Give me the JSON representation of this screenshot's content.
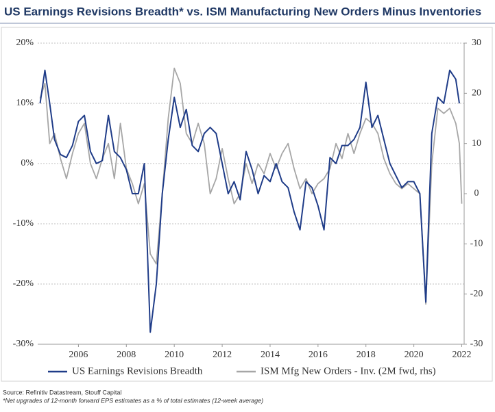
{
  "chart_data": {
    "type": "line",
    "title": "US Earnings Revisions Breadth* vs. ISM Manufacturing New Orders Minus Inventories",
    "source": "Source: Refinitiv Datastream, Stouff Capital",
    "footnote": "*Net upgrades of 12-month forward EPS estimates as a % of total estimates (12-week average)",
    "x": [
      2004.4,
      2004.6,
      2004.8,
      2005,
      2005.25,
      2005.5,
      2005.75,
      2006,
      2006.25,
      2006.5,
      2006.75,
      2007,
      2007.25,
      2007.5,
      2007.75,
      2008,
      2008.25,
      2008.5,
      2008.75,
      2009,
      2009.25,
      2009.5,
      2009.75,
      2010,
      2010.25,
      2010.5,
      2010.75,
      2011,
      2011.25,
      2011.5,
      2011.75,
      2012,
      2012.25,
      2012.5,
      2012.75,
      2013,
      2013.25,
      2013.5,
      2013.75,
      2014,
      2014.25,
      2014.5,
      2014.75,
      2015,
      2015.25,
      2015.5,
      2015.75,
      2016,
      2016.25,
      2016.5,
      2016.75,
      2017,
      2017.25,
      2017.5,
      2017.75,
      2018,
      2018.25,
      2018.5,
      2018.75,
      2019,
      2019.25,
      2019.5,
      2019.75,
      2020,
      2020.25,
      2020.5,
      2020.75,
      2021,
      2021.25,
      2021.5,
      2021.75,
      2021.9,
      2022
    ],
    "series": [
      {
        "name": "US Earnings Revisions Breadth",
        "color": "#1f3c88",
        "axis": "y",
        "values": [
          10,
          15.5,
          10,
          4,
          1.5,
          1,
          3,
          7,
          8,
          2,
          0,
          0.5,
          8,
          2,
          1,
          -1,
          -5,
          -5,
          0,
          -28,
          -20,
          -5,
          4,
          11,
          6,
          9,
          3,
          2,
          5,
          6,
          5,
          0,
          -5,
          -3,
          -6,
          2,
          -1,
          -5,
          -2,
          -3,
          0,
          -3,
          -4,
          -8,
          -11,
          -3,
          -4,
          -7,
          -11,
          1,
          0,
          3,
          3,
          4,
          6,
          13.5,
          6,
          8,
          4,
          0,
          -2,
          -4,
          -3,
          -3,
          -5,
          -23,
          5,
          11,
          10,
          15.5,
          14,
          10,
          null
        ]
      },
      {
        "name": "ISM Mfg New Orders - Inv. (2M fwd, rhs)",
        "color": "#a6a6a6",
        "axis": "y2",
        "values": [
          19,
          22,
          10,
          12,
          7,
          3,
          8,
          12,
          14,
          6,
          3,
          7,
          10,
          3,
          14,
          5,
          2,
          -2,
          2,
          -12,
          -14,
          0,
          15,
          25,
          22,
          12,
          10,
          14,
          10,
          0,
          3,
          9,
          3,
          -2,
          0,
          6,
          2,
          6,
          4,
          8,
          5,
          8,
          10,
          5,
          1,
          3,
          0,
          2,
          3,
          5,
          10,
          7,
          12,
          8,
          12,
          15,
          14,
          12,
          7,
          4,
          2,
          1,
          2,
          1,
          0,
          -22,
          6,
          17,
          16,
          17,
          14,
          10,
          -2
        ]
      }
    ],
    "xlim": [
      2004.3,
      2022.1
    ],
    "xticks": [
      2006,
      2008,
      2010,
      2012,
      2014,
      2016,
      2018,
      2020,
      2022
    ],
    "ylim": [
      -30,
      20
    ],
    "yticks": [
      {
        "value": 20,
        "label": "20%"
      },
      {
        "value": 10,
        "label": "10%"
      },
      {
        "value": 0,
        "label": "0%"
      },
      {
        "value": -10,
        "label": "-10%"
      },
      {
        "value": -20,
        "label": "-20%"
      },
      {
        "value": -30,
        "label": "-30%"
      }
    ],
    "y2lim": [
      -30,
      30
    ],
    "y2ticks": [
      30,
      20,
      10,
      0,
      -10,
      -20,
      -30
    ],
    "grid": true
  }
}
